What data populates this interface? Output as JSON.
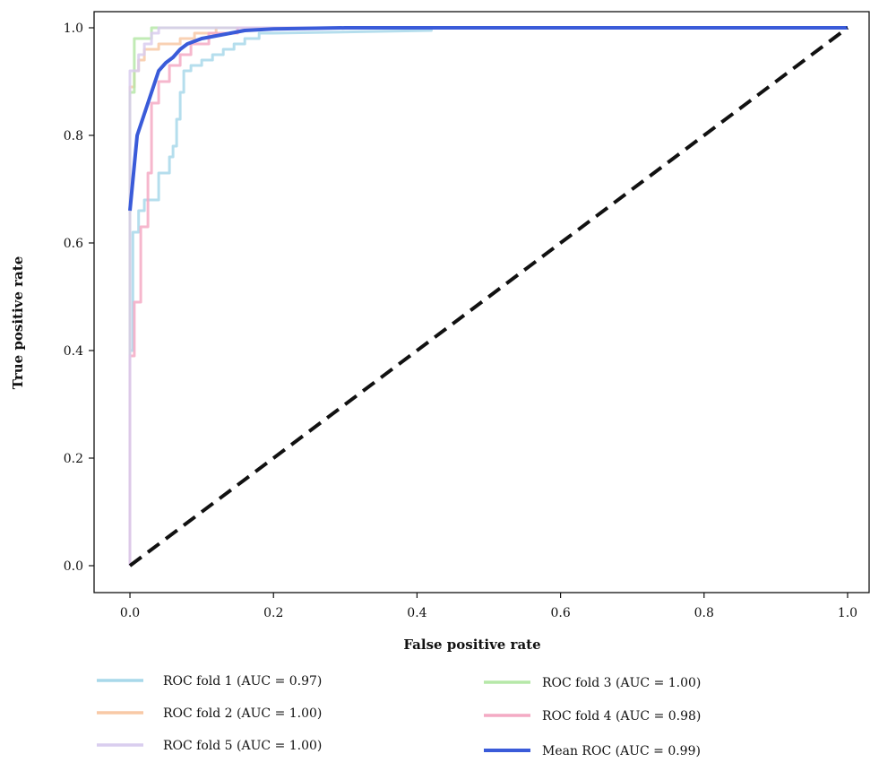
{
  "chart_data": {
    "type": "line",
    "title": "",
    "xlabel": "False positive rate",
    "ylabel": "True positive rate",
    "xlim": [
      -0.05,
      1.03
    ],
    "ylim": [
      -0.05,
      1.03
    ],
    "x_ticks": [
      "0.0",
      "0.2",
      "0.4",
      "0.6",
      "0.8",
      "1.0"
    ],
    "y_ticks": [
      "0.0",
      "0.2",
      "0.4",
      "0.6",
      "0.8",
      "1.0"
    ],
    "grid": false,
    "legend_position": "below",
    "series": [
      {
        "name": "ROC fold 1 (AUC = 0.97)",
        "color": "#a8d8ea",
        "points": [
          [
            0.0,
            0.0
          ],
          [
            0.0,
            0.4
          ],
          [
            0.004,
            0.4
          ],
          [
            0.004,
            0.62
          ],
          [
            0.012,
            0.62
          ],
          [
            0.012,
            0.66
          ],
          [
            0.02,
            0.66
          ],
          [
            0.02,
            0.68
          ],
          [
            0.04,
            0.68
          ],
          [
            0.04,
            0.73
          ],
          [
            0.055,
            0.73
          ],
          [
            0.055,
            0.76
          ],
          [
            0.06,
            0.76
          ],
          [
            0.06,
            0.78
          ],
          [
            0.065,
            0.78
          ],
          [
            0.065,
            0.83
          ],
          [
            0.07,
            0.83
          ],
          [
            0.07,
            0.88
          ],
          [
            0.075,
            0.88
          ],
          [
            0.075,
            0.92
          ],
          [
            0.085,
            0.92
          ],
          [
            0.085,
            0.93
          ],
          [
            0.1,
            0.93
          ],
          [
            0.1,
            0.94
          ],
          [
            0.115,
            0.94
          ],
          [
            0.115,
            0.95
          ],
          [
            0.13,
            0.95
          ],
          [
            0.13,
            0.96
          ],
          [
            0.145,
            0.96
          ],
          [
            0.145,
            0.97
          ],
          [
            0.16,
            0.97
          ],
          [
            0.16,
            0.98
          ],
          [
            0.18,
            0.98
          ],
          [
            0.18,
            0.99
          ],
          [
            0.2,
            0.99
          ],
          [
            0.42,
            0.995
          ],
          [
            0.42,
            1.0
          ],
          [
            1.0,
            1.0
          ]
        ]
      },
      {
        "name": "ROC fold 2 (AUC = 1.00)",
        "color": "#f8c9a6",
        "points": [
          [
            0.0,
            0.0
          ],
          [
            0.0,
            0.89
          ],
          [
            0.006,
            0.89
          ],
          [
            0.006,
            0.92
          ],
          [
            0.012,
            0.92
          ],
          [
            0.012,
            0.94
          ],
          [
            0.02,
            0.94
          ],
          [
            0.02,
            0.96
          ],
          [
            0.04,
            0.96
          ],
          [
            0.04,
            0.97
          ],
          [
            0.07,
            0.97
          ],
          [
            0.07,
            0.98
          ],
          [
            0.09,
            0.98
          ],
          [
            0.09,
            0.99
          ],
          [
            0.12,
            0.99
          ],
          [
            0.12,
            1.0
          ],
          [
            1.0,
            1.0
          ]
        ]
      },
      {
        "name": "ROC fold 3 (AUC = 1.00)",
        "color": "#b6e8a8",
        "points": [
          [
            0.0,
            0.0
          ],
          [
            0.0,
            0.88
          ],
          [
            0.006,
            0.88
          ],
          [
            0.006,
            0.98
          ],
          [
            0.03,
            0.98
          ],
          [
            0.03,
            1.0
          ],
          [
            1.0,
            1.0
          ]
        ]
      },
      {
        "name": "ROC fold 4 (AUC = 0.98)",
        "color": "#f4aac4",
        "points": [
          [
            0.0,
            0.0
          ],
          [
            0.0,
            0.39
          ],
          [
            0.006,
            0.39
          ],
          [
            0.006,
            0.49
          ],
          [
            0.015,
            0.49
          ],
          [
            0.015,
            0.63
          ],
          [
            0.025,
            0.63
          ],
          [
            0.025,
            0.73
          ],
          [
            0.03,
            0.73
          ],
          [
            0.03,
            0.86
          ],
          [
            0.04,
            0.86
          ],
          [
            0.04,
            0.9
          ],
          [
            0.055,
            0.9
          ],
          [
            0.055,
            0.93
          ],
          [
            0.07,
            0.93
          ],
          [
            0.07,
            0.95
          ],
          [
            0.085,
            0.95
          ],
          [
            0.085,
            0.97
          ],
          [
            0.11,
            0.97
          ],
          [
            0.11,
            0.99
          ],
          [
            0.15,
            0.99
          ],
          [
            0.15,
            1.0
          ],
          [
            1.0,
            1.0
          ]
        ]
      },
      {
        "name": "ROC fold 5 (AUC = 1.00)",
        "color": "#d9cdef",
        "points": [
          [
            0.0,
            0.0
          ],
          [
            0.0,
            0.92
          ],
          [
            0.012,
            0.92
          ],
          [
            0.012,
            0.95
          ],
          [
            0.02,
            0.95
          ],
          [
            0.02,
            0.97
          ],
          [
            0.03,
            0.97
          ],
          [
            0.03,
            0.99
          ],
          [
            0.04,
            0.99
          ],
          [
            0.04,
            1.0
          ],
          [
            1.0,
            1.0
          ]
        ]
      },
      {
        "name": "Mean ROC (AUC = 0.99)",
        "color": "#3a5bd9",
        "points": [
          [
            0.0,
            0.66
          ],
          [
            0.01,
            0.8
          ],
          [
            0.02,
            0.84
          ],
          [
            0.03,
            0.88
          ],
          [
            0.04,
            0.92
          ],
          [
            0.05,
            0.935
          ],
          [
            0.06,
            0.945
          ],
          [
            0.07,
            0.96
          ],
          [
            0.08,
            0.97
          ],
          [
            0.09,
            0.975
          ],
          [
            0.1,
            0.98
          ],
          [
            0.12,
            0.985
          ],
          [
            0.14,
            0.99
          ],
          [
            0.16,
            0.995
          ],
          [
            0.2,
            0.998
          ],
          [
            0.3,
            1.0
          ],
          [
            1.0,
            1.0
          ]
        ]
      }
    ],
    "chance_line": {
      "color": "#111111",
      "points": [
        [
          0.0,
          0.0
        ],
        [
          1.0,
          1.0
        ]
      ]
    }
  }
}
